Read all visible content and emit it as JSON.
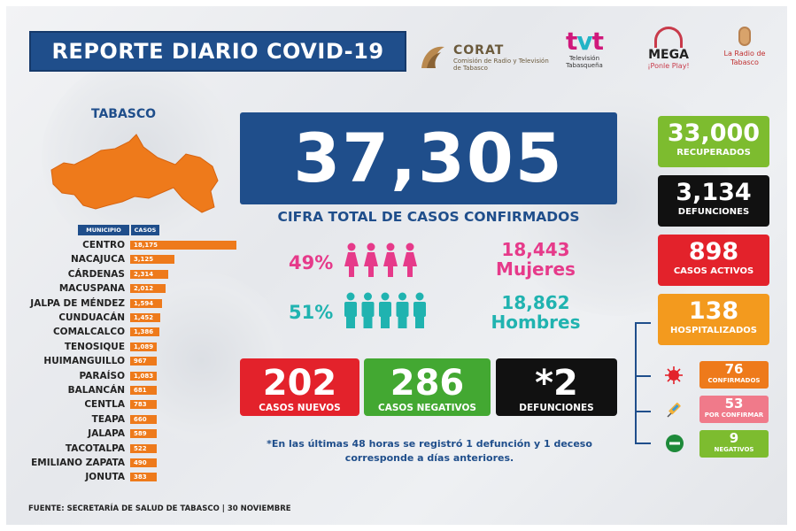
{
  "header": {
    "title": "REPORTE DIARIO COVID-19",
    "logos": [
      {
        "name": "CORAT",
        "sub": "Comisión de Radio y Televisión de Tabasco"
      },
      {
        "name": "tvt",
        "sub": "Televisión Tabasqueña"
      },
      {
        "name": "MEGA",
        "sub": "¡Ponle Play!"
      },
      {
        "name": "",
        "sub": "La Radio de Tabasco"
      }
    ]
  },
  "state": "TABASCO",
  "table": {
    "col_municipio": "MUNICIPIO",
    "col_casos": "CASOS",
    "rows": [
      {
        "name": "CENTRO",
        "value": "18,175",
        "n": 18175
      },
      {
        "name": "NACAJUCA",
        "value": "3,125",
        "n": 3125
      },
      {
        "name": "CÁRDENAS",
        "value": "2,314",
        "n": 2314
      },
      {
        "name": "MACUSPANA",
        "value": "2,012",
        "n": 2012
      },
      {
        "name": "JALPA DE MÉNDEZ",
        "value": "1,594",
        "n": 1594
      },
      {
        "name": "CUNDUACÁN",
        "value": "1,452",
        "n": 1452
      },
      {
        "name": "COMALCALCO",
        "value": "1,386",
        "n": 1386
      },
      {
        "name": "TENOSIQUE",
        "value": "1,089",
        "n": 1089
      },
      {
        "name": "HUIMANGUILLO",
        "value": "967",
        "n": 967
      },
      {
        "name": "PARAÍSO",
        "value": "1,083",
        "n": 1083
      },
      {
        "name": "BALANCÁN",
        "value": "681",
        "n": 681
      },
      {
        "name": "CENTLA",
        "value": "783",
        "n": 783
      },
      {
        "name": "TEAPA",
        "value": "660",
        "n": 660
      },
      {
        "name": "JALAPA",
        "value": "589",
        "n": 589
      },
      {
        "name": "TACOTALPA",
        "value": "522",
        "n": 522
      },
      {
        "name": "EMILIANO ZAPATA",
        "value": "490",
        "n": 490
      },
      {
        "name": "JONUTA",
        "value": "383",
        "n": 383
      }
    ]
  },
  "total": {
    "value": "37,305",
    "label": "CIFRA TOTAL DE CASOS CONFIRMADOS"
  },
  "women": {
    "pct": "49%",
    "count": "18,443",
    "label": "Mujeres",
    "color": "#e63a8a"
  },
  "men": {
    "pct": "51%",
    "count": "18,862",
    "label": "Hombres",
    "color": "#20b3b0"
  },
  "daily": [
    {
      "value": "202",
      "label": "CASOS NUEVOS",
      "color": "#e3222b"
    },
    {
      "value": "286",
      "label": "CASOS NEGATIVOS",
      "color": "#43a832"
    },
    {
      "value": "*2",
      "label": "DEFUNCIONES",
      "color": "#111111"
    }
  ],
  "note": "*En las últimas 48 horas se registró 1 defunción y 1 deceso corresponde a días anteriores.",
  "side": [
    {
      "value": "33,000",
      "label": "RECUPERADOS",
      "color": "#7dbc2f"
    },
    {
      "value": "3,134",
      "label": "DEFUNCIONES",
      "color": "#111111"
    },
    {
      "value": "898",
      "label": "CASOS ACTIVOS",
      "color": "#e3222b"
    },
    {
      "value": "138",
      "label": "HOSPITALIZADOS",
      "color": "#f39a1e"
    }
  ],
  "hospital": [
    {
      "value": "76",
      "label": "CONFIRMADOS",
      "color": "#ee7a1b",
      "icon": "virus-icon"
    },
    {
      "value": "53",
      "label": "POR CONFIRMAR",
      "color": "#f07a8a",
      "icon": "syringe-icon"
    },
    {
      "value": "9",
      "label": "NEGATIVOS",
      "color": "#7dbc2f",
      "icon": "minus-circle-icon"
    }
  ],
  "footer": "FUENTE: SECRETARÍA DE SALUD DE TABASCO   |  30 NOVIEMBRE"
}
